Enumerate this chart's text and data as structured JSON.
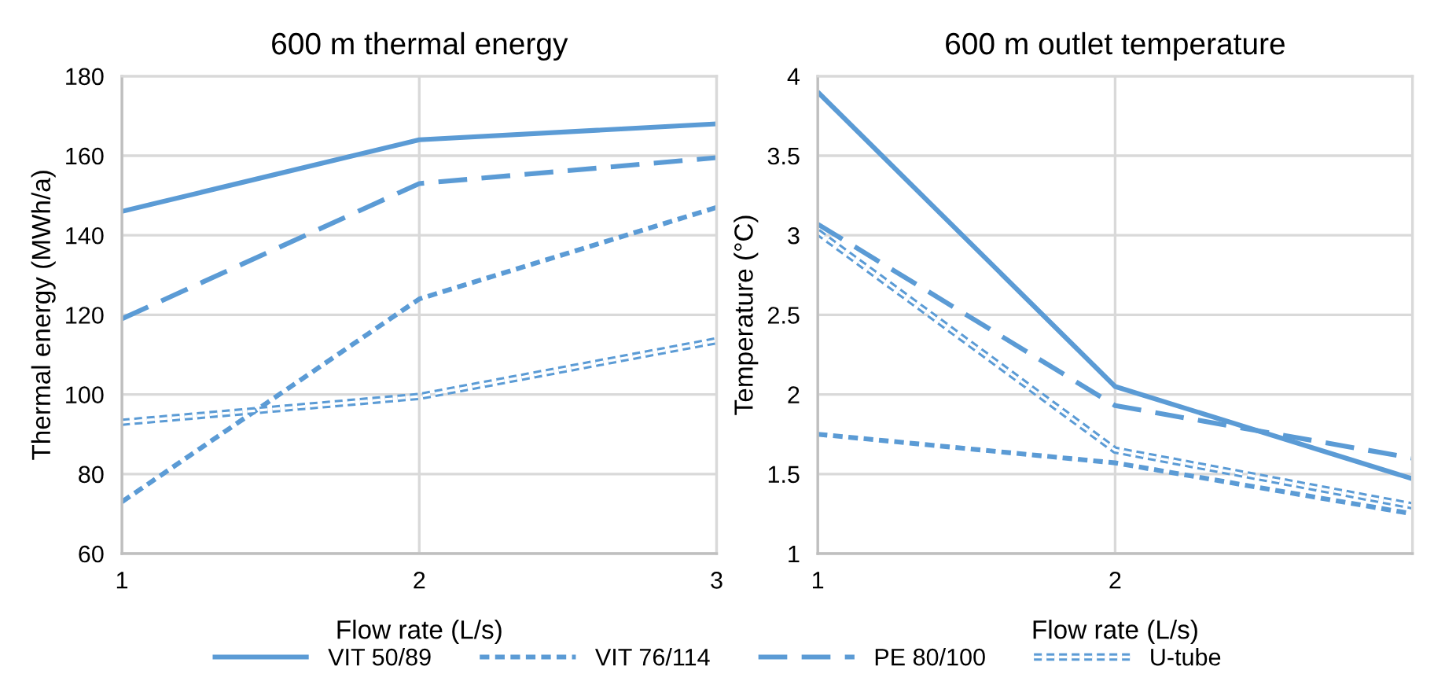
{
  "chart_data": [
    {
      "type": "line",
      "title": "600 m thermal energy",
      "xlabel": "Flow rate (L/s)",
      "ylabel": "Thermal energy (MWh/a)",
      "x": [
        1,
        2,
        3
      ],
      "xlim": [
        1,
        3
      ],
      "xticks": [
        1,
        2,
        3
      ],
      "ylim": [
        60,
        180
      ],
      "yticks": [
        60,
        80,
        100,
        120,
        140,
        160,
        180
      ],
      "grid": true,
      "legend": "bottom",
      "marker": "none",
      "series": [
        {
          "name": "VIT 50/89",
          "color": "#5b9bd5",
          "line_style": "solid",
          "values": [
            146,
            164,
            168
          ]
        },
        {
          "name": "VIT 76/114",
          "color": "#5b9bd5",
          "line_style": "dotted",
          "values": [
            73,
            124,
            147
          ]
        },
        {
          "name": "PE 80/100",
          "color": "#5b9bd5",
          "line_style": "dashed",
          "values": [
            119,
            153,
            159.5
          ]
        },
        {
          "name": "U-tube",
          "color": "#5b9bd5",
          "line_style": "double",
          "values": [
            93,
            99.5,
            113.5
          ]
        }
      ]
    },
    {
      "type": "line",
      "title": "600 m outlet temperature",
      "xlabel": "Flow rate (L/s)",
      "ylabel": "Temperature (°C)",
      "x": [
        1,
        2,
        3
      ],
      "xlim": [
        1,
        3
      ],
      "xticks": [
        1,
        2,
        {
          "value": 3,
          "label": null
        }
      ],
      "ylim": [
        1,
        4
      ],
      "yticks": [
        1,
        1.5,
        2,
        2.5,
        3,
        3.5,
        4
      ],
      "grid": true,
      "marker": "none",
      "series": [
        {
          "color": "#5b9bd5",
          "line_style": "solid",
          "values": [
            3.9,
            2.05,
            1.47
          ]
        },
        {
          "color": "#5b9bd5",
          "line_style": "dotted",
          "values": [
            1.75,
            1.57,
            1.25
          ]
        },
        {
          "color": "#5b9bd5",
          "line_style": "dashed",
          "values": [
            3.07,
            1.93,
            1.6
          ]
        },
        {
          "color": "#5b9bd5",
          "line_style": "double",
          "values": [
            3.02,
            1.65,
            1.3
          ]
        }
      ]
    }
  ]
}
